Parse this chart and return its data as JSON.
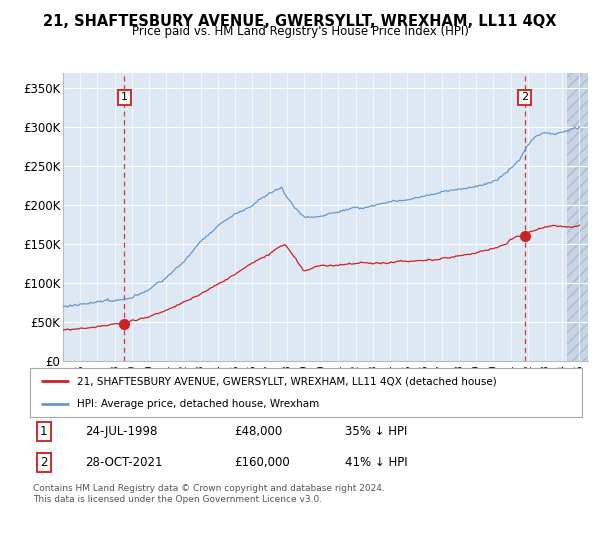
{
  "title": "21, SHAFTESBURY AVENUE, GWERSYLLT, WREXHAM, LL11 4QX",
  "subtitle": "Price paid vs. HM Land Registry's House Price Index (HPI)",
  "ylabel_ticks": [
    "£0",
    "£50K",
    "£100K",
    "£150K",
    "£200K",
    "£250K",
    "£300K",
    "£350K"
  ],
  "ytick_vals": [
    0,
    50000,
    100000,
    150000,
    200000,
    250000,
    300000,
    350000
  ],
  "ylim": [
    0,
    370000
  ],
  "xlim_start": 1995.0,
  "xlim_end": 2025.5,
  "hpi_color": "#6699cc",
  "price_color": "#cc2222",
  "sale1_date": 1998.56,
  "sale1_price": 48000,
  "sale2_date": 2021.83,
  "sale2_price": 160000,
  "legend1": "21, SHAFTESBURY AVENUE, GWERSYLLT, WREXHAM, LL11 4QX (detached house)",
  "legend2": "HPI: Average price, detached house, Wrexham",
  "note1_label": "1",
  "note1_date": "24-JUL-1998",
  "note1_price": "£48,000",
  "note1_hpi": "35% ↓ HPI",
  "note2_label": "2",
  "note2_date": "28-OCT-2021",
  "note2_price": "£160,000",
  "note2_hpi": "41% ↓ HPI",
  "footer": "Contains HM Land Registry data © Crown copyright and database right 2024.\nThis data is licensed under the Open Government Licence v3.0.",
  "background_color": "#dde8f4",
  "hatch_area_color": "#c8d4e4"
}
